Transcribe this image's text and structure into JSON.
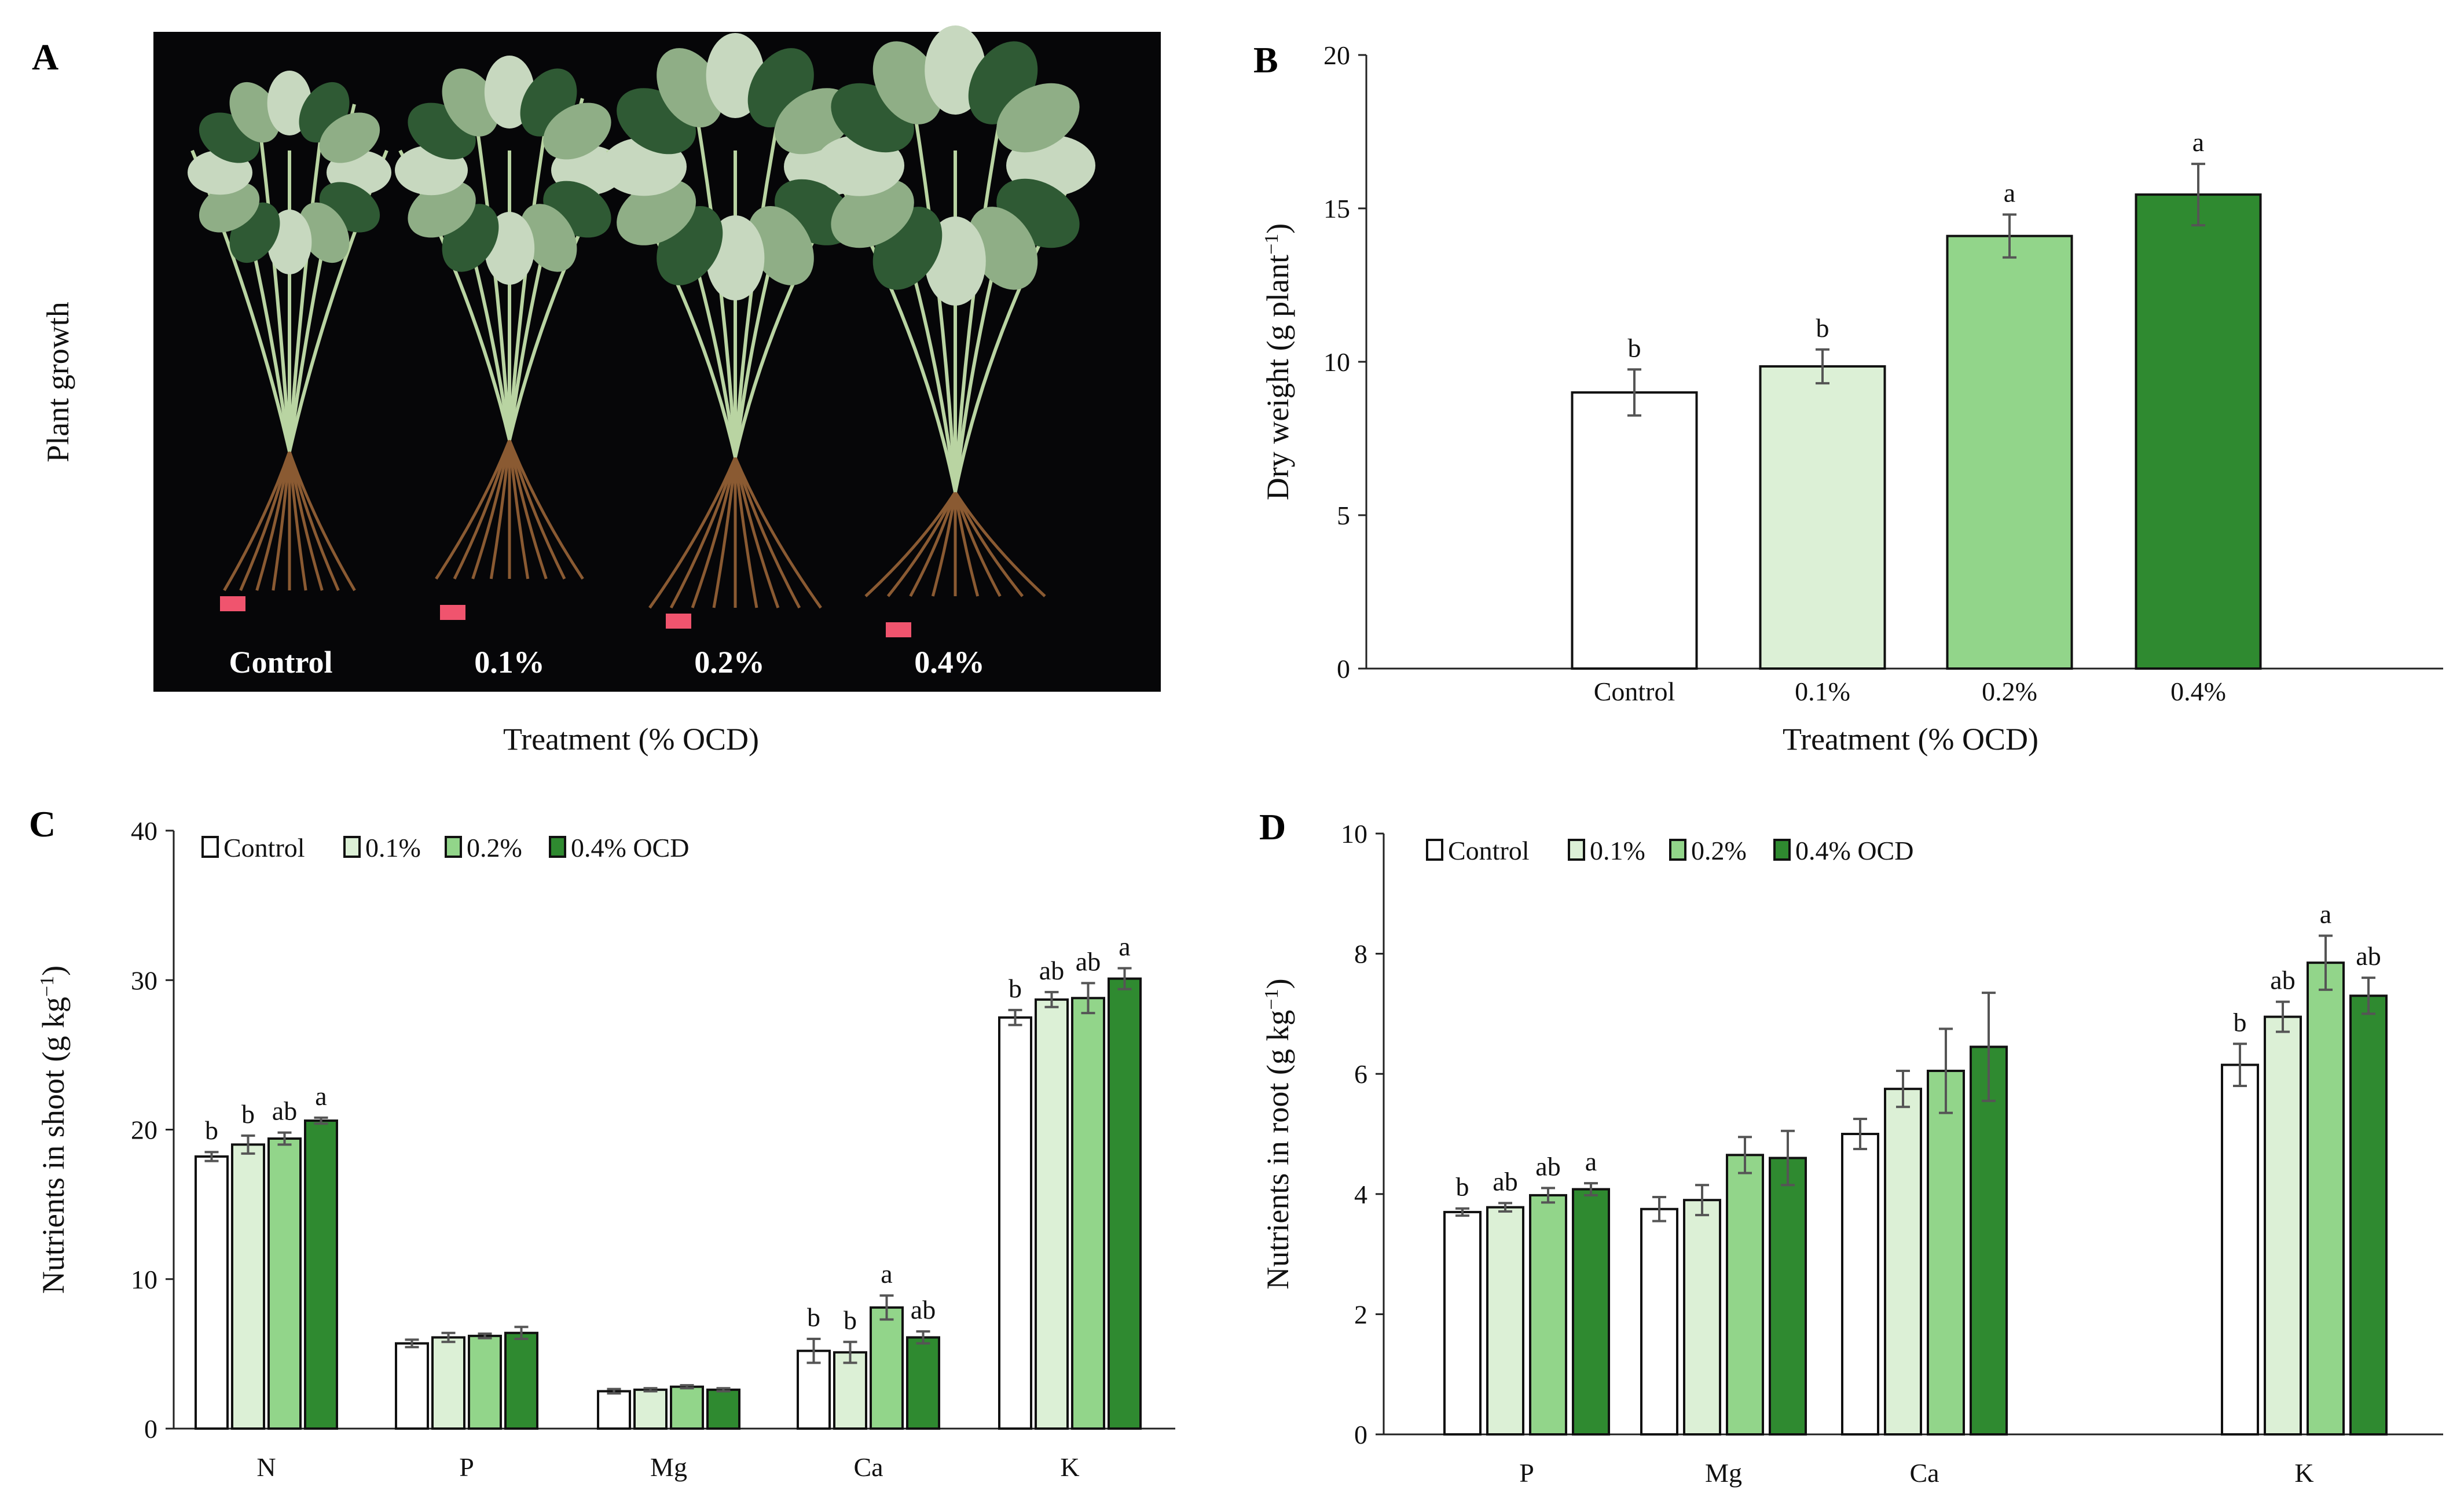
{
  "colors": {
    "control": "#ffffff",
    "c01": "#dcf0d6",
    "c02": "#92d58a",
    "c04": "#2f8a30",
    "c01_root": "#a7dd9c",
    "photo_bg": "#060608",
    "tag": "#f0546e"
  },
  "panel_a": {
    "label": "A",
    "ylabel": "Plant growth",
    "xlabel": "Treatment (% OCD)",
    "photo_labels": [
      "Control",
      "0.1%",
      "0.2%",
      "0.4%"
    ]
  },
  "chart_data": [
    {
      "panel": "B",
      "type": "bar",
      "title": "",
      "xlabel": "Treatment (% OCD)",
      "ylabel": "Dry weight (g plant",
      "ylabel_sup": "−1",
      "ylabel_close": ")",
      "ylim": [
        0,
        20
      ],
      "yticks": [
        0,
        5,
        10,
        15,
        20
      ],
      "grid": false,
      "categories": [
        "Control",
        "0.1%",
        "0.2%",
        "0.4%"
      ],
      "values": [
        9.0,
        9.85,
        14.1,
        15.45
      ],
      "errors": [
        0.75,
        0.55,
        0.7,
        1.0
      ],
      "letters": [
        "b",
        "b",
        "a",
        "a"
      ]
    },
    {
      "panel": "C",
      "type": "bar",
      "title": "",
      "xlabel": "",
      "ylabel": "Nutrients in shoot (g kg",
      "ylabel_sup": "−1",
      "ylabel_close": ")",
      "ylim": [
        0,
        40
      ],
      "yticks": [
        0,
        10,
        20,
        30,
        40
      ],
      "grid": false,
      "legend": [
        "Control",
        "0.1%",
        "0.2%",
        "0.4%  OCD"
      ],
      "legend_position": "top-left",
      "categories": [
        "N",
        "P",
        "Mg",
        "Ca",
        "K"
      ],
      "series": [
        {
          "name": "Control",
          "values": [
            18.2,
            5.7,
            2.5,
            5.2,
            27.5
          ],
          "errors": [
            0.3,
            0.25,
            0.15,
            0.8,
            0.5
          ],
          "letters": [
            "b",
            "",
            "",
            "b",
            "b"
          ]
        },
        {
          "name": "0.1%",
          "values": [
            19.0,
            6.1,
            2.6,
            5.1,
            28.7
          ],
          "errors": [
            0.6,
            0.3,
            0.1,
            0.7,
            0.5
          ],
          "letters": [
            "b",
            "",
            "",
            "b",
            "ab"
          ]
        },
        {
          "name": "0.2%",
          "values": [
            19.4,
            6.2,
            2.8,
            8.1,
            28.8
          ],
          "errors": [
            0.4,
            0.15,
            0.1,
            0.8,
            1.0
          ],
          "letters": [
            "ab",
            "",
            "",
            "a",
            "ab"
          ]
        },
        {
          "name": "0.4% OCD",
          "values": [
            20.6,
            6.4,
            2.6,
            6.1,
            30.1
          ],
          "errors": [
            0.2,
            0.4,
            0.1,
            0.4,
            0.7
          ],
          "letters": [
            "a",
            "",
            "",
            "ab",
            "a"
          ]
        }
      ]
    },
    {
      "panel": "D",
      "type": "bar",
      "title": "",
      "xlabel": "",
      "ylabel": "Nutrients in root (g kg",
      "ylabel_sup": "−1",
      "ylabel_close": ")",
      "ylim": [
        0,
        10
      ],
      "yticks": [
        0,
        2,
        4,
        6,
        8,
        10
      ],
      "grid": false,
      "legend": [
        "Control",
        "0.1%",
        "0.2%",
        "0.4% OCD"
      ],
      "legend_position": "top-left",
      "categories": [
        "P",
        "Mg",
        "Ca",
        "K"
      ],
      "series": [
        {
          "name": "Control",
          "values": [
            3.7,
            3.75,
            5.0,
            6.15
          ],
          "errors": [
            0.06,
            0.2,
            0.25,
            0.35
          ],
          "letters": [
            "b",
            "",
            "",
            "b"
          ]
        },
        {
          "name": "0.1%",
          "values": [
            3.78,
            3.9,
            5.75,
            6.95
          ],
          "errors": [
            0.07,
            0.25,
            0.3,
            0.25
          ],
          "letters": [
            "ab",
            "",
            "",
            "ab"
          ]
        },
        {
          "name": "0.2%",
          "values": [
            3.98,
            4.65,
            6.05,
            7.85
          ],
          "errors": [
            0.12,
            0.3,
            0.7,
            0.45
          ],
          "letters": [
            "ab",
            "",
            "",
            "a"
          ]
        },
        {
          "name": "0.4% OCD",
          "values": [
            4.08,
            4.6,
            6.45,
            7.3
          ],
          "errors": [
            0.1,
            0.45,
            0.9,
            0.3
          ],
          "letters": [
            "a",
            "",
            "",
            "ab"
          ]
        }
      ]
    }
  ]
}
